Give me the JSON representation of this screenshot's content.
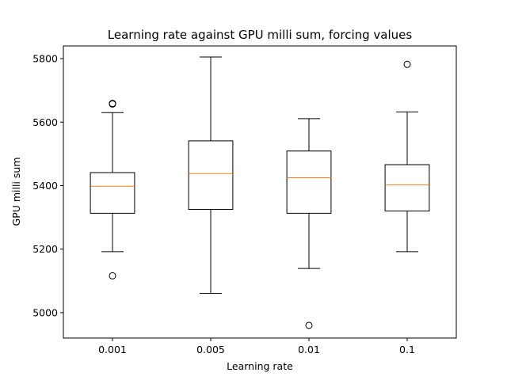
{
  "chart_data": {
    "type": "box",
    "title": "Learning rate against GPU milli sum, forcing values",
    "xlabel": "Learning rate",
    "ylabel": "GPU milli sum",
    "categories": [
      "0.001",
      "0.005",
      "0.01",
      "0.1"
    ],
    "ylim": [
      4920,
      5840
    ],
    "yticks": [
      5000,
      5200,
      5400,
      5600,
      5800
    ],
    "grid": false,
    "boxes": [
      {
        "category": "0.001",
        "whisker_low": 5192,
        "q1": 5313,
        "median": 5398,
        "q3": 5441,
        "whisker_high": 5630,
        "outliers": [
          5116,
          5657,
          5659
        ]
      },
      {
        "category": "0.005",
        "whisker_low": 5061,
        "q1": 5325,
        "median": 5438,
        "q3": 5541,
        "whisker_high": 5805,
        "outliers": []
      },
      {
        "category": "0.01",
        "whisker_low": 5139,
        "q1": 5313,
        "median": 5425,
        "q3": 5509,
        "whisker_high": 5611,
        "outliers": [
          4960
        ]
      },
      {
        "category": "0.1",
        "whisker_low": 5192,
        "q1": 5320,
        "median": 5402,
        "q3": 5466,
        "whisker_high": 5632,
        "outliers": [
          5782
        ]
      }
    ],
    "colors": {
      "box": "#000000",
      "median": "#ff7f0e",
      "outlier": "#000000"
    }
  }
}
